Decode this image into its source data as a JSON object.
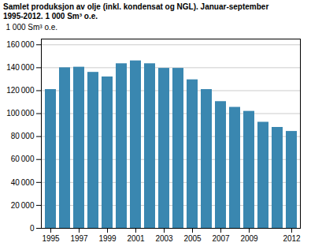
{
  "chart_data": {
    "type": "bar",
    "title": "Samlet produksjon av olje (inkl. kondensat og NGL). Januar-september",
    "subtitle": "1995-2012. 1 000 Sm³ o.e.",
    "y_label": "1 000 Sm³ o.e.",
    "x": [
      1995,
      1996,
      1997,
      1998,
      1999,
      2000,
      2001,
      2002,
      2003,
      2004,
      2005,
      2006,
      2007,
      2008,
      2009,
      2010,
      2011,
      2012
    ],
    "values": [
      121000,
      140000,
      140500,
      136000,
      132000,
      143500,
      146000,
      143500,
      139500,
      139500,
      129500,
      121000,
      110500,
      105500,
      102000,
      92500,
      88000,
      84500
    ],
    "color": "#3a87b0",
    "xticks": [
      1995,
      1997,
      1999,
      2001,
      2003,
      2005,
      2007,
      2009,
      2012
    ],
    "ylim": [
      0,
      165000
    ],
    "yticks": [
      0,
      {
        "value": 20000,
        "label": "20 000"
      },
      {
        "value": 40000,
        "label": "40 000"
      },
      {
        "value": 60000,
        "label": "60 000"
      },
      {
        "value": 80000,
        "label": "80 000"
      },
      {
        "value": 100000,
        "label": "100 000"
      },
      {
        "value": 120000,
        "label": "120 000"
      },
      {
        "value": 140000,
        "label": "140 000"
      },
      {
        "value": 160000,
        "label": "160 000"
      }
    ],
    "grid": true
  }
}
